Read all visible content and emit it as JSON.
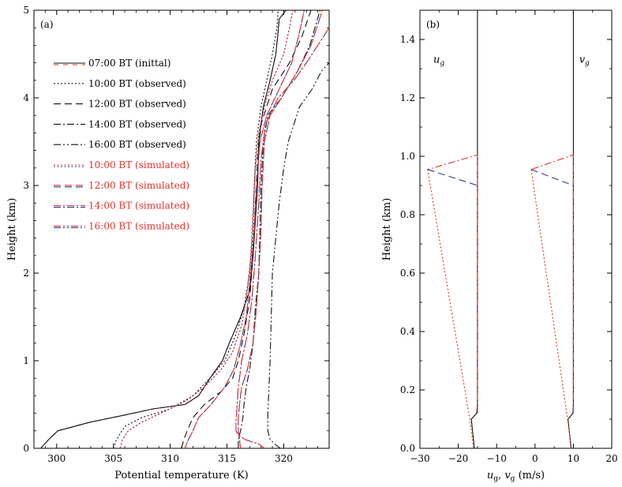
{
  "colors": {
    "black": "#111111",
    "red": "#e8322a",
    "blue": "#2b3d9c",
    "axis": "#000000"
  },
  "chart_data": [
    {
      "type": "line",
      "panel_label": "(a)",
      "xlabel": "Potential temperature (K)",
      "ylabel": "Height (km)",
      "xlim": [
        298,
        324
      ],
      "ylim": [
        0,
        5
      ],
      "xticks": [
        "300",
        "305",
        "310",
        "315",
        "320"
      ],
      "xtick_values": [
        300,
        305,
        310,
        315,
        320
      ],
      "yticks": [
        "0",
        "1",
        "2",
        "3",
        "4",
        "5"
      ],
      "ytick_values": [
        0,
        1,
        2,
        3,
        4,
        5
      ],
      "legend_position": "upper-left",
      "series": [
        {
          "name": "07:00 BT (inittal)",
          "legend": "07:00 BT (inittal)",
          "style": "solid",
          "color": "black",
          "overlay": "red",
          "points": [
            [
              298.6,
              0
            ],
            [
              299.3,
              0.1
            ],
            [
              300.1,
              0.2
            ],
            [
              303,
              0.3
            ],
            [
              306,
              0.38
            ],
            [
              308.5,
              0.45
            ],
            [
              311.3,
              0.5
            ],
            [
              312.5,
              0.6
            ],
            [
              313.5,
              0.8
            ],
            [
              314.6,
              1.0
            ],
            [
              315.2,
              1.2
            ],
            [
              316.2,
              1.5
            ],
            [
              317,
              1.8
            ],
            [
              317.3,
              2.2
            ],
            [
              317.5,
              2.6
            ],
            [
              317.7,
              3.0
            ],
            [
              317.8,
              3.5
            ],
            [
              318.2,
              3.9
            ],
            [
              318.8,
              4.2
            ],
            [
              319.3,
              4.5
            ],
            [
              319.5,
              4.75
            ],
            [
              319.6,
              4.9
            ],
            [
              320.2,
              5.0
            ]
          ]
        },
        {
          "name": "10:00 BT (observed)",
          "legend": "10:00 BT (observed)",
          "style": "dot",
          "color": "black",
          "points": [
            [
              305,
              0
            ],
            [
              305.2,
              0.08
            ],
            [
              305.5,
              0.15
            ],
            [
              306,
              0.25
            ],
            [
              307.5,
              0.35
            ],
            [
              310,
              0.45
            ],
            [
              312,
              0.6
            ],
            [
              313.5,
              0.8
            ],
            [
              314.8,
              1.0
            ],
            [
              315.8,
              1.3
            ],
            [
              316.5,
              1.6
            ],
            [
              317,
              2.0
            ],
            [
              317.3,
              2.5
            ],
            [
              317.4,
              3.0
            ],
            [
              317.6,
              3.5
            ],
            [
              318,
              3.9
            ],
            [
              318.5,
              4.2
            ],
            [
              319,
              4.5
            ],
            [
              319.4,
              4.8
            ],
            [
              319.5,
              5.0
            ]
          ]
        },
        {
          "name": "12:00 BT (observed)",
          "legend": "12:00 BT (observed)",
          "style": "dash",
          "color": "black",
          "points": [
            [
              311,
              0
            ],
            [
              311.2,
              0.1
            ],
            [
              311.5,
              0.2
            ],
            [
              312,
              0.35
            ],
            [
              313,
              0.5
            ],
            [
              314.5,
              0.65
            ],
            [
              315.5,
              0.8
            ],
            [
              316,
              1.0
            ],
            [
              316.5,
              1.3
            ],
            [
              317,
              1.7
            ],
            [
              317.3,
              2.2
            ],
            [
              317.5,
              2.8
            ],
            [
              317.7,
              3.3
            ],
            [
              318,
              3.7
            ],
            [
              319,
              4.1
            ],
            [
              320.5,
              4.4
            ],
            [
              321.6,
              4.7
            ],
            [
              322.4,
              5.0
            ]
          ]
        },
        {
          "name": "14:00 BT (observed)",
          "legend": "14:00 BT (observed)",
          "style": "dashdot",
          "color": "black",
          "points": [
            [
              316,
              0
            ],
            [
              316,
              0.1
            ],
            [
              316.2,
              0.2
            ],
            [
              316.4,
              0.35
            ],
            [
              316.5,
              0.5
            ],
            [
              316.7,
              0.7
            ],
            [
              317,
              0.9
            ],
            [
              317.3,
              1.2
            ],
            [
              317.5,
              1.6
            ],
            [
              317.8,
              2.0
            ],
            [
              317.9,
              2.5
            ],
            [
              318,
              3.0
            ],
            [
              318.2,
              3.5
            ],
            [
              318.6,
              3.8
            ],
            [
              319.8,
              4.0
            ],
            [
              321.2,
              4.3
            ],
            [
              322.3,
              4.6
            ],
            [
              323.2,
              5.0
            ]
          ]
        },
        {
          "name": "16:00 BT (observed)",
          "legend": "16:00 BT (observed)",
          "style": "dashdotdot",
          "color": "black",
          "points": [
            [
              319.7,
              0
            ],
            [
              319.2,
              0.05
            ],
            [
              318.8,
              0.1
            ],
            [
              318.6,
              0.2
            ],
            [
              318.6,
              0.4
            ],
            [
              318.7,
              0.7
            ],
            [
              318.8,
              1.0
            ],
            [
              318.9,
              1.5
            ],
            [
              319,
              2.0
            ],
            [
              319.3,
              2.4
            ],
            [
              319.6,
              2.8
            ],
            [
              320,
              3.2
            ],
            [
              320.4,
              3.5
            ],
            [
              320.9,
              3.7
            ],
            [
              321.4,
              3.9
            ],
            [
              322.5,
              4.1
            ],
            [
              323.3,
              4.3
            ],
            [
              324,
              4.4
            ]
          ]
        },
        {
          "name": "10:00 BT (simulated)",
          "legend": "10:00 BT (simulated)",
          "style": "dot",
          "color": "red",
          "overlay": "blue",
          "points": [
            [
              305.6,
              0
            ],
            [
              305.8,
              0.1
            ],
            [
              306.3,
              0.2
            ],
            [
              307.5,
              0.3
            ],
            [
              309.5,
              0.42
            ],
            [
              311.5,
              0.55
            ],
            [
              313,
              0.7
            ],
            [
              314.5,
              0.9
            ],
            [
              315.5,
              1.1
            ],
            [
              316.3,
              1.4
            ],
            [
              316.8,
              1.8
            ],
            [
              317.1,
              2.2
            ],
            [
              317.3,
              2.7
            ],
            [
              317.5,
              3.2
            ],
            [
              317.8,
              3.6
            ],
            [
              318.3,
              3.9
            ],
            [
              319,
              4.2
            ],
            [
              320,
              4.5
            ],
            [
              320.5,
              4.8
            ],
            [
              320.8,
              5.0
            ]
          ]
        },
        {
          "name": "12:00 BT (simulated)",
          "legend": "12:00 BT (simulated)",
          "style": "dash",
          "color": "red",
          "overlay": "blue",
          "points": [
            [
              311.3,
              0
            ],
            [
              311.6,
              0.1
            ],
            [
              312,
              0.2
            ],
            [
              312.5,
              0.35
            ],
            [
              313.6,
              0.5
            ],
            [
              314.8,
              0.7
            ],
            [
              315.6,
              0.9
            ],
            [
              316.2,
              1.2
            ],
            [
              316.7,
              1.5
            ],
            [
              317.1,
              2.0
            ],
            [
              317.4,
              2.5
            ],
            [
              317.6,
              3.0
            ],
            [
              317.9,
              3.5
            ],
            [
              318.5,
              3.8
            ],
            [
              319.6,
              4.1
            ],
            [
              320.7,
              4.4
            ],
            [
              321.3,
              4.7
            ],
            [
              321.8,
              5.0
            ]
          ]
        },
        {
          "name": "14:00 BT (simulated)",
          "legend": "14:00 BT (simulated)",
          "style": "dashdot",
          "color": "red",
          "overlay": "blue",
          "points": [
            [
              316.2,
              0
            ],
            [
              316.1,
              0.1
            ],
            [
              316,
              0.2
            ],
            [
              316,
              0.35
            ],
            [
              316.1,
              0.5
            ],
            [
              316.3,
              0.7
            ],
            [
              316.8,
              0.9
            ],
            [
              317.3,
              1.2
            ],
            [
              317.6,
              1.6
            ],
            [
              317.8,
              2.0
            ],
            [
              318,
              2.5
            ],
            [
              318.1,
              3.0
            ],
            [
              318.3,
              3.5
            ],
            [
              318.8,
              3.8
            ],
            [
              319.8,
              4.0
            ],
            [
              321.2,
              4.3
            ],
            [
              322.4,
              4.6
            ],
            [
              323.4,
              5.0
            ]
          ]
        },
        {
          "name": "16:00 BT (simulated)",
          "legend": "16:00 BT (simulated)",
          "style": "dashdotdot",
          "color": "red",
          "overlay": "blue",
          "points": [
            [
              318.3,
              0
            ],
            [
              317.8,
              0.05
            ],
            [
              316.6,
              0.1
            ],
            [
              316,
              0.15
            ],
            [
              315.8,
              0.2
            ],
            [
              315.8,
              0.3
            ],
            [
              315.9,
              0.5
            ],
            [
              316,
              0.7
            ],
            [
              316.3,
              1.0
            ],
            [
              316.8,
              1.3
            ],
            [
              317.2,
              1.7
            ],
            [
              317.5,
              2.2
            ],
            [
              317.8,
              2.8
            ],
            [
              318,
              3.3
            ],
            [
              318.4,
              3.7
            ],
            [
              319.5,
              4.0
            ],
            [
              320.9,
              4.2
            ],
            [
              322,
              4.4
            ],
            [
              323,
              4.6
            ],
            [
              324,
              4.8
            ]
          ]
        }
      ]
    },
    {
      "type": "line",
      "panel_label": "(b)",
      "xlabel": "u_g, v_g (m/s)",
      "xlabel_parts": {
        "u": "u",
        "g1": "g",
        "sep": ", ",
        "v": "v",
        "g2": "g",
        "unit": " (m/s)"
      },
      "ylabel": "Height (km)",
      "xlim": [
        -30,
        20
      ],
      "ylim": [
        0,
        1.5
      ],
      "xticks": [
        "-30",
        "-20",
        "-10",
        "0",
        "10",
        "20"
      ],
      "xtick_values": [
        -30,
        -20,
        -10,
        0,
        10,
        20
      ],
      "yticks": [
        "0.0",
        "0.2",
        "0.4",
        "0.6",
        "0.8",
        "1.0",
        "1.2",
        "1.4"
      ],
      "ytick_values": [
        0,
        0.2,
        0.4,
        0.6,
        0.8,
        1.0,
        1.2,
        1.4
      ],
      "annotations": [
        {
          "text": "u",
          "sub": "g",
          "x": -26.5,
          "y": 1.32
        },
        {
          "text": "v",
          "sub": "g",
          "x": 11.5,
          "y": 1.32
        }
      ],
      "series": [
        {
          "name": "u_g profile",
          "style": "solid",
          "color": "black",
          "points": [
            [
              -15.8,
              0
            ],
            [
              -16.6,
              0.1
            ],
            [
              -15.2,
              0.12
            ],
            [
              -15,
              0.15
            ],
            [
              -15,
              1.5
            ]
          ]
        },
        {
          "name": "v_g profile",
          "style": "solid",
          "color": "black",
          "points": [
            [
              9.4,
              0
            ],
            [
              8.6,
              0.1
            ],
            [
              9.9,
              0.12
            ],
            [
              10,
              0.15
            ],
            [
              10,
              1.5
            ]
          ]
        },
        {
          "name": "u_g red",
          "style": "dashdot",
          "color": "red",
          "points": [
            [
              -15,
              0.12
            ],
            [
              -15,
              1.005
            ],
            [
              -28,
              0.955
            ]
          ]
        },
        {
          "name": "u_g red dotted",
          "style": "dot",
          "color": "red",
          "points": [
            [
              -28,
              0.955
            ],
            [
              -17,
              0.1
            ],
            [
              -16,
              0
            ]
          ]
        },
        {
          "name": "u_g blue",
          "style": "dash",
          "color": "blue",
          "points": [
            [
              -28,
              0.955
            ],
            [
              -15,
              0.9
            ]
          ]
        },
        {
          "name": "v_g red",
          "style": "dashdot",
          "color": "red",
          "points": [
            [
              10,
              0.12
            ],
            [
              10,
              1.005
            ],
            [
              -1,
              0.955
            ]
          ]
        },
        {
          "name": "v_g red dotted",
          "style": "dot",
          "color": "red",
          "points": [
            [
              -1,
              0.955
            ],
            [
              8.5,
              0.1
            ],
            [
              9.5,
              0
            ]
          ]
        },
        {
          "name": "v_g blue",
          "style": "dash",
          "color": "blue",
          "points": [
            [
              -1,
              0.955
            ],
            [
              10,
              0.9
            ]
          ]
        }
      ]
    }
  ]
}
